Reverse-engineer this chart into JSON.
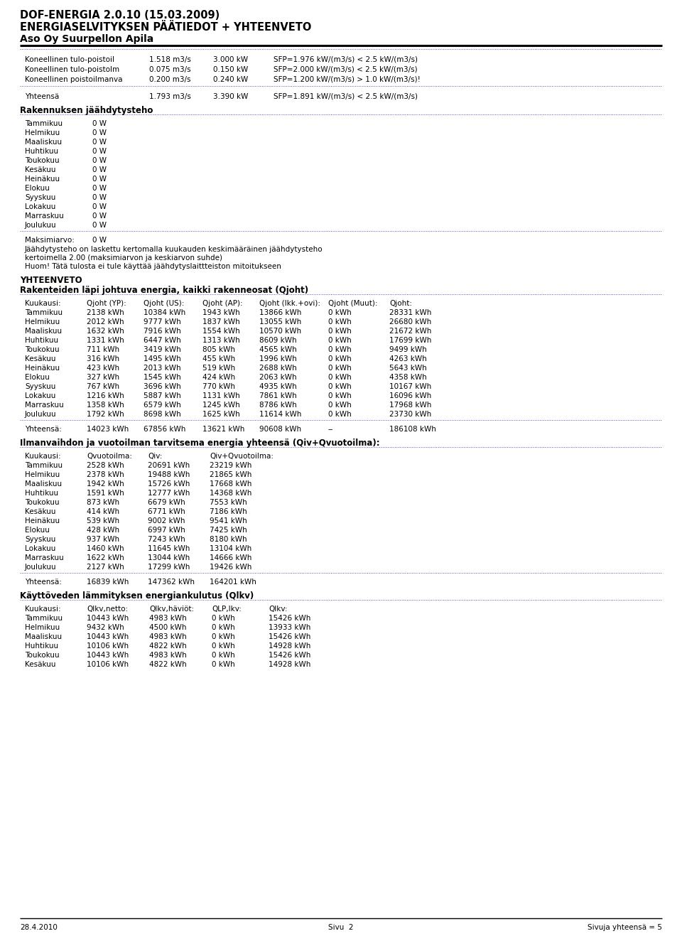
{
  "title1": "DOF-ENERGIA 2.0.10 (15.03.2009)",
  "title2": "ENERGIASELVITYKSEN PÄÄTIEDOT + YHTEENVETO",
  "title3": "Aso Oy Suurpellon Apila",
  "section1_label": "Rakennuksen jäähdytysteho",
  "section2_label": "YHTEENVETO",
  "section3_label": "Rakenteiden läpi johtuva energia, kaikki rakenneosat (Qjoht)",
  "section4_label": "Ilmanvaihdon ja vuotoilman tarvitsema energia yhteensä (Qiv+Qvuotoilma):",
  "section5_label": "Käyttöveden lämmityksen energiankulutus (Qlkv)",
  "footer_left": "28.4.2010",
  "footer_center": "Sivu  2",
  "footer_right": "Sivuja yhteensä = 5",
  "sfp_rows": [
    [
      "Koneellinen tulo-poistoil",
      "1.518 m3/s",
      "3.000 kW",
      "SFP=1.976 kW/(m3/s) < 2.5 kW/(m3/s)"
    ],
    [
      "Koneellinen tulo-poistolm",
      "0.075 m3/s",
      "0.150 kW",
      "SFP=2.000 kW/(m3/s) < 2.5 kW/(m3/s)"
    ],
    [
      "Koneellinen poistoilmanva",
      "0.200 m3/s",
      "0.240 kW",
      "SFP=1.200 kW/(m3/s) > 1.0 kW/(m3/s)!"
    ]
  ],
  "sfp_total": [
    "Yhteensä",
    "1.793 m3/s",
    "3.390 kW",
    "SFP=1.891 kW/(m3/s) < 2.5 kW/(m3/s)"
  ],
  "cooling_months": [
    [
      "Tammikuu",
      "0 W"
    ],
    [
      "Helmikuu",
      "0 W"
    ],
    [
      "Maaliskuu",
      "0 W"
    ],
    [
      "Huhtikuu",
      "0 W"
    ],
    [
      "Toukokuu",
      "0 W"
    ],
    [
      "Kesäkuu",
      "0 W"
    ],
    [
      "Heinäkuu",
      "0 W"
    ],
    [
      "Elokuu",
      "0 W"
    ],
    [
      "Syyskuu",
      "0 W"
    ],
    [
      "Lokakuu",
      "0 W"
    ],
    [
      "Marraskuu",
      "0 W"
    ],
    [
      "Joulukuu",
      "0 W"
    ]
  ],
  "cooling_max": "0 W",
  "cooling_note1": "Jäähdytysteho on laskettu kertomalla kuukauden keskimääräinen jäähdytysteho",
  "cooling_note2": "kertoimella 2.00 (maksimiarvon ja keskiarvon suhde)",
  "cooling_note3": "Huom! Tätä tulosta ei tule käyttää jäähdytyslaittteiston mitoitukseen",
  "qjoht_headers": [
    "Kuukausi:",
    "Qjoht (YP):",
    "Qjoht (US):",
    "Qjoht (AP):",
    "Qjoht (Ikk.+ovi):",
    "Qjoht (Muut):",
    "Qjoht:"
  ],
  "qjoht_rows": [
    [
      "Tammikuu",
      "2138 kWh",
      "10384 kWh",
      "1943 kWh",
      "13866 kWh",
      "0 kWh",
      "28331 kWh"
    ],
    [
      "Helmikuu",
      "2012 kWh",
      "9777 kWh",
      "1837 kWh",
      "13055 kWh",
      "0 kWh",
      "26680 kWh"
    ],
    [
      "Maaliskuu",
      "1632 kWh",
      "7916 kWh",
      "1554 kWh",
      "10570 kWh",
      "0 kWh",
      "21672 kWh"
    ],
    [
      "Huhtikuu",
      "1331 kWh",
      "6447 kWh",
      "1313 kWh",
      "8609 kWh",
      "0 kWh",
      "17699 kWh"
    ],
    [
      "Toukokuu",
      "711 kWh",
      "3419 kWh",
      "805 kWh",
      "4565 kWh",
      "0 kWh",
      "9499 kWh"
    ],
    [
      "Kesäkuu",
      "316 kWh",
      "1495 kWh",
      "455 kWh",
      "1996 kWh",
      "0 kWh",
      "4263 kWh"
    ],
    [
      "Heinäkuu",
      "423 kWh",
      "2013 kWh",
      "519 kWh",
      "2688 kWh",
      "0 kWh",
      "5643 kWh"
    ],
    [
      "Elokuu",
      "327 kWh",
      "1545 kWh",
      "424 kWh",
      "2063 kWh",
      "0 kWh",
      "4358 kWh"
    ],
    [
      "Syyskuu",
      "767 kWh",
      "3696 kWh",
      "770 kWh",
      "4935 kWh",
      "0 kWh",
      "10167 kWh"
    ],
    [
      "Lokakuu",
      "1216 kWh",
      "5887 kWh",
      "1131 kWh",
      "7861 kWh",
      "0 kWh",
      "16096 kWh"
    ],
    [
      "Marraskuu",
      "1358 kWh",
      "6579 kWh",
      "1245 kWh",
      "8786 kWh",
      "0 kWh",
      "17968 kWh"
    ],
    [
      "Joulukuu",
      "1792 kWh",
      "8698 kWh",
      "1625 kWh",
      "11614 kWh",
      "0 kWh",
      "23730 kWh"
    ]
  ],
  "qjoht_total": [
    "Yhteensä:",
    "14023 kWh",
    "67856 kWh",
    "13621 kWh",
    "90608 kWh",
    "--",
    "186108 kWh"
  ],
  "qiv_headers": [
    "Kuukausi:",
    "Qvuotoilma:",
    "Qiv:",
    "Qiv+Qvuotoilma:"
  ],
  "qiv_rows": [
    [
      "Tammikuu",
      "2528 kWh",
      "20691 kWh",
      "23219 kWh"
    ],
    [
      "Helmikuu",
      "2378 kWh",
      "19488 kWh",
      "21865 kWh"
    ],
    [
      "Maaliskuu",
      "1942 kWh",
      "15726 kWh",
      "17668 kWh"
    ],
    [
      "Huhtikuu",
      "1591 kWh",
      "12777 kWh",
      "14368 kWh"
    ],
    [
      "Toukokuu",
      "873 kWh",
      "6679 kWh",
      "7553 kWh"
    ],
    [
      "Kesäkuu",
      "414 kWh",
      "6771 kWh",
      "7186 kWh"
    ],
    [
      "Heinäkuu",
      "539 kWh",
      "9002 kWh",
      "9541 kWh"
    ],
    [
      "Elokuu",
      "428 kWh",
      "6997 kWh",
      "7425 kWh"
    ],
    [
      "Syyskuu",
      "937 kWh",
      "7243 kWh",
      "8180 kWh"
    ],
    [
      "Lokakuu",
      "1460 kWh",
      "11645 kWh",
      "13104 kWh"
    ],
    [
      "Marraskuu",
      "1622 kWh",
      "13044 kWh",
      "14666 kWh"
    ],
    [
      "Joulukuu",
      "2127 kWh",
      "17299 kWh",
      "19426 kWh"
    ]
  ],
  "qiv_total": [
    "Yhteensä:",
    "16839 kWh",
    "147362 kWh",
    "164201 kWh"
  ],
  "qlkv_headers": [
    "Kuukausi:",
    "Qlkv,netto:",
    "Qlkv,häviöt:",
    "QLP,lkv:",
    "Qlkv:"
  ],
  "qlkv_rows": [
    [
      "Tammikuu",
      "10443 kWh",
      "4983 kWh",
      "0 kWh",
      "15426 kWh"
    ],
    [
      "Helmikuu",
      "9432 kWh",
      "4500 kWh",
      "0 kWh",
      "13933 kWh"
    ],
    [
      "Maaliskuu",
      "10443 kWh",
      "4983 kWh",
      "0 kWh",
      "15426 kWh"
    ],
    [
      "Huhtikuu",
      "10106 kWh",
      "4822 kWh",
      "0 kWh",
      "14928 kWh"
    ],
    [
      "Toukokuu",
      "10443 kWh",
      "4983 kWh",
      "0 kWh",
      "15426 kWh"
    ],
    [
      "Kesäkuu",
      "10106 kWh",
      "4822 kWh",
      "0 kWh",
      "14928 kWh"
    ]
  ],
  "bg_color": "#ffffff",
  "text_color": "#000000",
  "dot_line_color": "#5555bb"
}
